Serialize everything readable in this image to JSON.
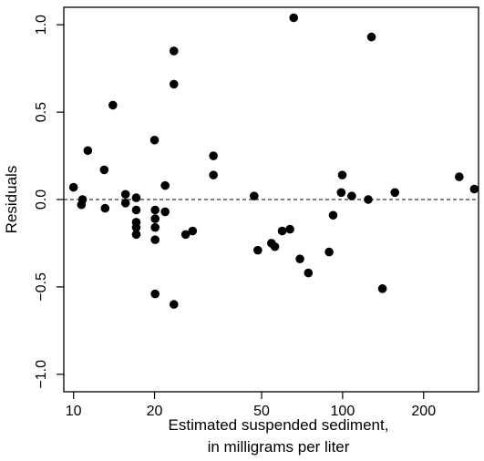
{
  "chart_data": {
    "type": "scatter",
    "title": "",
    "xlabel_lines": [
      "Estimated suspended sediment,",
      "in milligrams per liter"
    ],
    "ylabel": "Residuals",
    "x_scale": "log",
    "xlim": [
      9.2,
      320
    ],
    "ylim": [
      -1.1,
      1.1
    ],
    "x_ticks": [
      10,
      20,
      50,
      100,
      200
    ],
    "x_tick_labels": [
      "10",
      "20",
      "50",
      "100",
      "200"
    ],
    "y_ticks": [
      -1.0,
      -0.5,
      0.0,
      0.5,
      1.0
    ],
    "y_tick_labels": [
      "−1.0",
      "−0.5",
      "0.0",
      "0.5",
      "1.0"
    ],
    "reference_line": {
      "y": 0,
      "style": "dashed"
    },
    "grid": false,
    "legend": "none",
    "point_color": "#000000",
    "points": [
      {
        "x": 10,
        "y": 0.07
      },
      {
        "x": 10.7,
        "y": -0.03
      },
      {
        "x": 10.8,
        "y": 0.0
      },
      {
        "x": 11.3,
        "y": 0.28
      },
      {
        "x": 13,
        "y": 0.17
      },
      {
        "x": 13.1,
        "y": -0.05
      },
      {
        "x": 14,
        "y": 0.54
      },
      {
        "x": 15.6,
        "y": 0.03
      },
      {
        "x": 15.6,
        "y": -0.02
      },
      {
        "x": 17.1,
        "y": 0.01
      },
      {
        "x": 17.1,
        "y": -0.06
      },
      {
        "x": 17.1,
        "y": -0.13
      },
      {
        "x": 17.1,
        "y": -0.16
      },
      {
        "x": 17.1,
        "y": -0.2
      },
      {
        "x": 20,
        "y": 0.34
      },
      {
        "x": 20.1,
        "y": -0.06
      },
      {
        "x": 20.1,
        "y": -0.11
      },
      {
        "x": 20.1,
        "y": -0.16
      },
      {
        "x": 20.1,
        "y": -0.23
      },
      {
        "x": 20.1,
        "y": -0.54
      },
      {
        "x": 21.9,
        "y": 0.08
      },
      {
        "x": 21.9,
        "y": -0.07
      },
      {
        "x": 23.6,
        "y": 0.85
      },
      {
        "x": 23.6,
        "y": 0.66
      },
      {
        "x": 23.6,
        "y": -0.6
      },
      {
        "x": 26.1,
        "y": -0.2
      },
      {
        "x": 27.7,
        "y": -0.18
      },
      {
        "x": 33.1,
        "y": 0.25
      },
      {
        "x": 33.1,
        "y": 0.14
      },
      {
        "x": 46.9,
        "y": 0.02
      },
      {
        "x": 48.4,
        "y": -0.29
      },
      {
        "x": 54.4,
        "y": -0.25
      },
      {
        "x": 56,
        "y": -0.27
      },
      {
        "x": 59.6,
        "y": -0.18
      },
      {
        "x": 63.7,
        "y": -0.17
      },
      {
        "x": 65.8,
        "y": 1.04
      },
      {
        "x": 69.4,
        "y": -0.34
      },
      {
        "x": 74.6,
        "y": -0.42
      },
      {
        "x": 89.1,
        "y": -0.3
      },
      {
        "x": 92.2,
        "y": -0.09
      },
      {
        "x": 98.8,
        "y": 0.04
      },
      {
        "x": 99.7,
        "y": 0.14
      },
      {
        "x": 108.1,
        "y": 0.02
      },
      {
        "x": 124.5,
        "y": 0.0
      },
      {
        "x": 128,
        "y": 0.93
      },
      {
        "x": 140.6,
        "y": -0.51
      },
      {
        "x": 156.4,
        "y": 0.04
      },
      {
        "x": 271.3,
        "y": 0.13
      },
      {
        "x": 308.6,
        "y": 0.06
      }
    ]
  }
}
